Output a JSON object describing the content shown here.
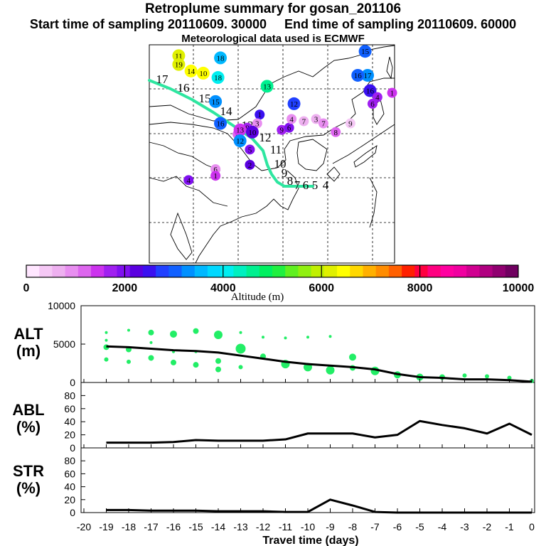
{
  "title": "Retroplume summary for gosan_201106",
  "subtitle_start": "Start time of sampling 20110609. 30000",
  "subtitle_end": "End time of sampling 20110609. 60000",
  "met_note": "Meteorological data used is ECMWF",
  "colors": {
    "trajectory": "#2ee6a0",
    "scatter_green": "#22ee66",
    "line": "#000000"
  },
  "colorbar": {
    "label": "Altitude (m)",
    "min": 0,
    "max": 10000,
    "tick_labels": [
      "0",
      "2000",
      "4000",
      "6000",
      "8000",
      "10000"
    ],
    "colors": [
      "#ffe6ff",
      "#f5c8f5",
      "#eeb0f0",
      "#e88ef0",
      "#dd66ee",
      "#cc33ee",
      "#a020f0",
      "#8010f0",
      "#5a00e0",
      "#3a10f0",
      "#2040ff",
      "#1060ff",
      "#0090ff",
      "#00b8ff",
      "#00d8ff",
      "#00eef0",
      "#00f0c0",
      "#00f090",
      "#00f060",
      "#20f040",
      "#60f020",
      "#90f010",
      "#c0f000",
      "#e0f000",
      "#ffff00",
      "#ffd800",
      "#ffb000",
      "#ff8c00",
      "#ff6000",
      "#ff2000",
      "#ff0040",
      "#ff0080",
      "#ff00a0",
      "#f000a0",
      "#d00090",
      "#b00080",
      "#900070",
      "#700060"
    ]
  },
  "map_points": [
    {
      "label": "11",
      "lon": 0.12,
      "lat": 0.05,
      "alt": 6200
    },
    {
      "label": "19",
      "lon": 0.12,
      "lat": 0.09,
      "alt": 6100
    },
    {
      "label": "18",
      "lon": 0.29,
      "lat": 0.06,
      "alt": 3600
    },
    {
      "label": "14",
      "lon": 0.17,
      "lat": 0.12,
      "alt": 6500
    },
    {
      "label": "10",
      "lon": 0.22,
      "lat": 0.13,
      "alt": 6400
    },
    {
      "label": "18",
      "lon": 0.28,
      "lat": 0.15,
      "alt": 4200
    },
    {
      "label": "13",
      "lon": 0.48,
      "lat": 0.19,
      "alt": 4500
    },
    {
      "label": "15",
      "lon": 0.27,
      "lat": 0.26,
      "alt": 3200
    },
    {
      "label": "12",
      "lon": 0.59,
      "lat": 0.27,
      "alt": 2700
    },
    {
      "label": "1",
      "lon": 0.45,
      "lat": 0.32,
      "alt": 2600
    },
    {
      "label": "16",
      "lon": 0.29,
      "lat": 0.36,
      "alt": 3000
    },
    {
      "label": "9",
      "lon": 0.4,
      "lat": 0.38,
      "alt": 1600
    },
    {
      "label": "3",
      "lon": 0.44,
      "lat": 0.36,
      "alt": 800
    },
    {
      "label": "4",
      "lon": 0.36,
      "lat": 0.41,
      "alt": 1200
    },
    {
      "label": "13",
      "lon": 0.37,
      "lat": 0.39,
      "alt": 1400
    },
    {
      "label": "10",
      "lon": 0.42,
      "lat": 0.4,
      "alt": 2300
    },
    {
      "label": "12",
      "lon": 0.37,
      "lat": 0.44,
      "alt": 3300
    },
    {
      "label": "9",
      "lon": 0.54,
      "lat": 0.39,
      "alt": 1700
    },
    {
      "label": "6",
      "lon": 0.57,
      "lat": 0.38,
      "alt": 2000
    },
    {
      "label": "4",
      "lon": 0.58,
      "lat": 0.34,
      "alt": 1000
    },
    {
      "label": "7",
      "lon": 0.63,
      "lat": 0.35,
      "alt": 700
    },
    {
      "label": "3",
      "lon": 0.68,
      "lat": 0.34,
      "alt": 600
    },
    {
      "label": "7",
      "lon": 0.71,
      "lat": 0.36,
      "alt": 900
    },
    {
      "label": "9",
      "lon": 0.82,
      "lat": 0.36,
      "alt": 400
    },
    {
      "label": "8",
      "lon": 0.76,
      "lat": 0.4,
      "alt": 1100
    },
    {
      "label": "16",
      "lon": 0.9,
      "lat": 0.21,
      "alt": 2600
    },
    {
      "label": "17",
      "lon": 0.89,
      "lat": 0.14,
      "alt": 3300
    },
    {
      "label": "16",
      "lon": 0.85,
      "lat": 0.14,
      "alt": 3100
    },
    {
      "label": "15",
      "lon": 0.88,
      "lat": 0.03,
      "alt": 3000
    },
    {
      "label": "4",
      "lon": 0.93,
      "lat": 0.24,
      "alt": 1600
    },
    {
      "label": "6",
      "lon": 0.91,
      "lat": 0.27,
      "alt": 1800
    },
    {
      "label": "1",
      "lon": 0.99,
      "lat": 0.22,
      "alt": 1500
    },
    {
      "label": "5",
      "lon": 0.41,
      "lat": 0.48,
      "alt": 2100
    },
    {
      "label": "2",
      "lon": 0.41,
      "lat": 0.55,
      "alt": 2300
    },
    {
      "label": "6",
      "lon": 0.27,
      "lat": 0.57,
      "alt": 900
    },
    {
      "label": "1",
      "lon": 0.27,
      "lat": 0.6,
      "alt": 1500
    },
    {
      "label": "4",
      "lon": 0.16,
      "lat": 0.62,
      "alt": 1900
    }
  ],
  "map_trajectory": {
    "labels": [
      "17",
      "16",
      "15",
      "14",
      "13",
      "12",
      "11",
      "10",
      "9",
      "8",
      "7",
      "6",
      "5",
      "4"
    ]
  },
  "panels": {
    "x_label": "Travel time (days)",
    "x_ticks": [
      "-20",
      "-19",
      "-18",
      "-17",
      "-16",
      "-15",
      "-14",
      "-13",
      "-12",
      "-11",
      "-10",
      "-9",
      "-8",
      "-7",
      "-6",
      "-5",
      "-4",
      "-3",
      "-2",
      "-1",
      "0"
    ],
    "alt": {
      "label_line1": "ALT",
      "label_line2": "(m)",
      "y_ticks": [
        "10000",
        "5000",
        "0"
      ],
      "ylim": [
        0,
        10000
      ],
      "line": {
        "x": [
          -19,
          -18,
          -17,
          -16,
          -15,
          -14,
          -13,
          -12,
          -11,
          -10,
          -9,
          -8,
          -7,
          -6,
          -5,
          -4,
          -3,
          -2,
          -1,
          0
        ],
        "y": [
          4700,
          4600,
          4400,
          4200,
          4100,
          3900,
          3500,
          3100,
          2700,
          2400,
          2200,
          2000,
          1700,
          1100,
          700,
          600,
          400,
          400,
          300,
          100
        ]
      },
      "points": [
        {
          "x": -19,
          "y": 6500,
          "s": 2
        },
        {
          "x": -19,
          "y": 5500,
          "s": 2
        },
        {
          "x": -19,
          "y": 4600,
          "s": 4
        },
        {
          "x": -19,
          "y": 3000,
          "s": 3
        },
        {
          "x": -18,
          "y": 6800,
          "s": 2
        },
        {
          "x": -18,
          "y": 4300,
          "s": 4
        },
        {
          "x": -18,
          "y": 2700,
          "s": 3
        },
        {
          "x": -17,
          "y": 6500,
          "s": 4
        },
        {
          "x": -17,
          "y": 5200,
          "s": 2
        },
        {
          "x": -17,
          "y": 3200,
          "s": 4
        },
        {
          "x": -16,
          "y": 6300,
          "s": 5
        },
        {
          "x": -16,
          "y": 4000,
          "s": 2
        },
        {
          "x": -16,
          "y": 2600,
          "s": 4
        },
        {
          "x": -15,
          "y": 6700,
          "s": 4
        },
        {
          "x": -15,
          "y": 4000,
          "s": 2
        },
        {
          "x": -15,
          "y": 2300,
          "s": 4
        },
        {
          "x": -14,
          "y": 6200,
          "s": 6
        },
        {
          "x": -14,
          "y": 2800,
          "s": 4
        },
        {
          "x": -14,
          "y": 1700,
          "s": 4
        },
        {
          "x": -13,
          "y": 6500,
          "s": 2
        },
        {
          "x": -13,
          "y": 4400,
          "s": 7
        },
        {
          "x": -13,
          "y": 2000,
          "s": 3
        },
        {
          "x": -12,
          "y": 5900,
          "s": 2
        },
        {
          "x": -12,
          "y": 3400,
          "s": 4
        },
        {
          "x": -11,
          "y": 5800,
          "s": 2
        },
        {
          "x": -11,
          "y": 2400,
          "s": 6
        },
        {
          "x": -10,
          "y": 5900,
          "s": 2
        },
        {
          "x": -10,
          "y": 2000,
          "s": 6
        },
        {
          "x": -9,
          "y": 6000,
          "s": 2
        },
        {
          "x": -9,
          "y": 1600,
          "s": 6
        },
        {
          "x": -8,
          "y": 3300,
          "s": 5
        },
        {
          "x": -8,
          "y": 1900,
          "s": 4
        },
        {
          "x": -7,
          "y": 1500,
          "s": 6
        },
        {
          "x": -6,
          "y": 1000,
          "s": 5
        },
        {
          "x": -5,
          "y": 700,
          "s": 5
        },
        {
          "x": -4,
          "y": 700,
          "s": 4
        },
        {
          "x": -3,
          "y": 900,
          "s": 3
        },
        {
          "x": -2,
          "y": 800,
          "s": 3
        },
        {
          "x": -1,
          "y": 600,
          "s": 3
        },
        {
          "x": 0,
          "y": 200,
          "s": 3
        }
      ]
    },
    "abl": {
      "label_line1": "ABL",
      "label_line2": "(%)",
      "y_ticks": [
        "80",
        "60",
        "40",
        "20",
        "0"
      ],
      "ylim": [
        0,
        100
      ],
      "line": {
        "x": [
          -19,
          -18,
          -17,
          -16,
          -15,
          -14,
          -13,
          -12,
          -11,
          -10,
          -9,
          -8,
          -7,
          -6,
          -5,
          -4,
          -3,
          -2,
          -1,
          0
        ],
        "y": [
          8,
          8,
          8,
          9,
          12,
          11,
          11,
          11,
          13,
          22,
          22,
          22,
          16,
          20,
          41,
          35,
          30,
          22,
          37,
          20
        ]
      }
    },
    "str": {
      "label_line1": "STR",
      "label_line2": "(%)",
      "y_ticks": [
        "80",
        "60",
        "40",
        "20",
        "0"
      ],
      "ylim": [
        0,
        100
      ],
      "line": {
        "x": [
          -19,
          -18,
          -17,
          -16,
          -15,
          -14,
          -13,
          -12,
          -11,
          -10,
          -9,
          -8,
          -7,
          -6,
          -5,
          -4,
          -3,
          -2,
          -1,
          0
        ],
        "y": [
          4,
          4,
          3,
          3,
          3,
          2,
          2,
          2,
          1,
          1,
          20,
          11,
          1,
          0,
          0,
          0,
          0,
          0,
          0,
          0
        ]
      }
    }
  }
}
